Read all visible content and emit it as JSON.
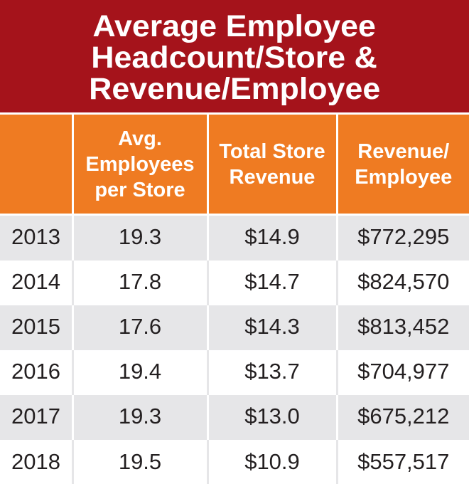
{
  "chart_data": {
    "type": "table",
    "title_lines": [
      "Average Employee",
      "Headcount/Store &",
      "Revenue/Employee"
    ],
    "columns": [
      {
        "lines": []
      },
      {
        "lines": [
          "Avg.",
          "Employees",
          "per Store"
        ]
      },
      {
        "lines": [
          "Total Store",
          "Revenue"
        ]
      },
      {
        "lines": [
          "Revenue/",
          "Employee"
        ]
      }
    ],
    "rows": [
      {
        "year": "2013",
        "avg_employees": "19.3",
        "total_store_revenue": "$14.9",
        "revenue_per_employee": "$772,295"
      },
      {
        "year": "2014",
        "avg_employees": "17.8",
        "total_store_revenue": "$14.7",
        "revenue_per_employee": "$824,570"
      },
      {
        "year": "2015",
        "avg_employees": "17.6",
        "total_store_revenue": "$14.3",
        "revenue_per_employee": "$813,452"
      },
      {
        "year": "2016",
        "avg_employees": "19.4",
        "total_store_revenue": "$13.7",
        "revenue_per_employee": "$704,977"
      },
      {
        "year": "2017",
        "avg_employees": "19.3",
        "total_store_revenue": "$13.0",
        "revenue_per_employee": "$675,212"
      },
      {
        "year": "2018",
        "avg_employees": "19.5",
        "total_store_revenue": "$10.9",
        "revenue_per_employee": "$557,517"
      }
    ],
    "colors": {
      "title_background": "#a5131b",
      "header_background": "#ef7b22",
      "row_stripe": "#e6e6e8",
      "text": "#231f20"
    }
  }
}
